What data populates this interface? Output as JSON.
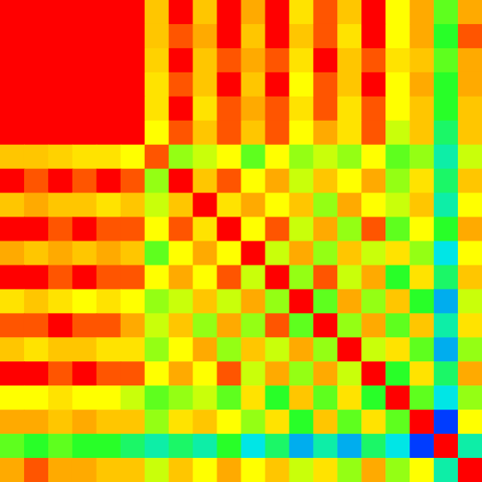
{
  "chart_data": {
    "type": "heatmap",
    "tick_labels": false,
    "zlim": [
      0,
      1
    ],
    "cells": [
      [
        1,
        1,
        1,
        1,
        1,
        1,
        0.8,
        0.95,
        0.8,
        0.95,
        0.85,
        0.95,
        0.75,
        0.9,
        0.8,
        0.95,
        0.7,
        0.85,
        0.55,
        0.85
      ],
      [
        1,
        1,
        1,
        1,
        1,
        1,
        0.8,
        0.9,
        0.85,
        0.95,
        0.8,
        0.95,
        0.8,
        0.9,
        0.75,
        0.95,
        0.7,
        0.85,
        0.5,
        0.9
      ],
      [
        1,
        1,
        1,
        1,
        1,
        1,
        0.78,
        0.95,
        0.8,
        0.9,
        0.85,
        0.9,
        0.75,
        0.95,
        0.8,
        0.9,
        0.75,
        0.8,
        0.55,
        0.85
      ],
      [
        1,
        1,
        1,
        1,
        1,
        1,
        0.75,
        0.9,
        0.8,
        0.95,
        0.8,
        0.95,
        0.7,
        0.9,
        0.8,
        0.95,
        0.7,
        0.85,
        0.5,
        0.85
      ],
      [
        1,
        1,
        1,
        1,
        1,
        1,
        0.75,
        0.95,
        0.75,
        0.9,
        0.85,
        0.9,
        0.75,
        0.9,
        0.75,
        0.9,
        0.7,
        0.8,
        0.5,
        0.8
      ],
      [
        1,
        1,
        1,
        1,
        1,
        1,
        0.7,
        0.9,
        0.8,
        0.9,
        0.8,
        0.9,
        0.7,
        0.85,
        0.75,
        0.9,
        0.65,
        0.8,
        0.45,
        0.8
      ],
      [
        0.8,
        0.8,
        0.78,
        0.75,
        0.75,
        0.7,
        0.9,
        0.6,
        0.65,
        0.7,
        0.55,
        0.7,
        0.6,
        0.65,
        0.6,
        0.7,
        0.55,
        0.6,
        0.4,
        0.65
      ],
      [
        0.95,
        0.9,
        0.95,
        0.9,
        0.95,
        0.9,
        0.6,
        1,
        0.8,
        0.9,
        0.7,
        0.85,
        0.65,
        0.8,
        0.7,
        0.85,
        0.6,
        0.75,
        0.45,
        0.8
      ],
      [
        0.8,
        0.85,
        0.8,
        0.8,
        0.75,
        0.8,
        0.65,
        0.8,
        1,
        0.75,
        0.85,
        0.7,
        0.8,
        0.6,
        0.85,
        0.7,
        0.65,
        0.8,
        0.4,
        0.7
      ],
      [
        0.95,
        0.95,
        0.9,
        0.95,
        0.9,
        0.9,
        0.7,
        0.9,
        0.75,
        1,
        0.7,
        0.9,
        0.65,
        0.85,
        0.6,
        0.9,
        0.55,
        0.7,
        0.5,
        0.85
      ],
      [
        0.85,
        0.8,
        0.85,
        0.8,
        0.85,
        0.8,
        0.55,
        0.7,
        0.85,
        0.7,
        1,
        0.65,
        0.85,
        0.6,
        0.8,
        0.65,
        0.75,
        0.6,
        0.35,
        0.7
      ],
      [
        0.95,
        0.95,
        0.9,
        0.95,
        0.9,
        0.9,
        0.7,
        0.85,
        0.7,
        0.9,
        0.65,
        1,
        0.6,
        0.9,
        0.65,
        0.85,
        0.5,
        0.75,
        0.45,
        0.8
      ],
      [
        0.75,
        0.8,
        0.75,
        0.7,
        0.75,
        0.7,
        0.6,
        0.65,
        0.8,
        0.65,
        0.85,
        0.6,
        1,
        0.55,
        0.85,
        0.6,
        0.8,
        0.5,
        0.3,
        0.65
      ],
      [
        0.9,
        0.9,
        0.95,
        0.9,
        0.9,
        0.85,
        0.65,
        0.8,
        0.6,
        0.85,
        0.6,
        0.9,
        0.55,
        1,
        0.6,
        0.85,
        0.55,
        0.8,
        0.4,
        0.75
      ],
      [
        0.8,
        0.75,
        0.8,
        0.8,
        0.75,
        0.75,
        0.6,
        0.7,
        0.85,
        0.6,
        0.8,
        0.65,
        0.85,
        0.6,
        1,
        0.65,
        0.75,
        0.55,
        0.3,
        0.6
      ],
      [
        0.95,
        0.95,
        0.9,
        0.95,
        0.9,
        0.9,
        0.7,
        0.85,
        0.7,
        0.9,
        0.65,
        0.85,
        0.6,
        0.85,
        0.65,
        1,
        0.5,
        0.75,
        0.45,
        0.85
      ],
      [
        0.7,
        0.7,
        0.75,
        0.7,
        0.7,
        0.65,
        0.55,
        0.6,
        0.65,
        0.55,
        0.75,
        0.5,
        0.8,
        0.55,
        0.75,
        0.5,
        1,
        0.55,
        0.35,
        0.6
      ],
      [
        0.85,
        0.85,
        0.8,
        0.85,
        0.8,
        0.8,
        0.6,
        0.75,
        0.8,
        0.7,
        0.6,
        0.75,
        0.5,
        0.8,
        0.55,
        0.75,
        0.55,
        1,
        0.2,
        0.7
      ],
      [
        0.55,
        0.5,
        0.55,
        0.5,
        0.5,
        0.45,
        0.4,
        0.45,
        0.4,
        0.5,
        0.35,
        0.45,
        0.3,
        0.4,
        0.3,
        0.45,
        0.35,
        0.2,
        1,
        0.4
      ],
      [
        0.85,
        0.9,
        0.85,
        0.85,
        0.8,
        0.8,
        0.65,
        0.8,
        0.7,
        0.85,
        0.7,
        0.8,
        0.65,
        0.75,
        0.6,
        0.85,
        0.6,
        0.7,
        0.4,
        1
      ]
    ]
  }
}
